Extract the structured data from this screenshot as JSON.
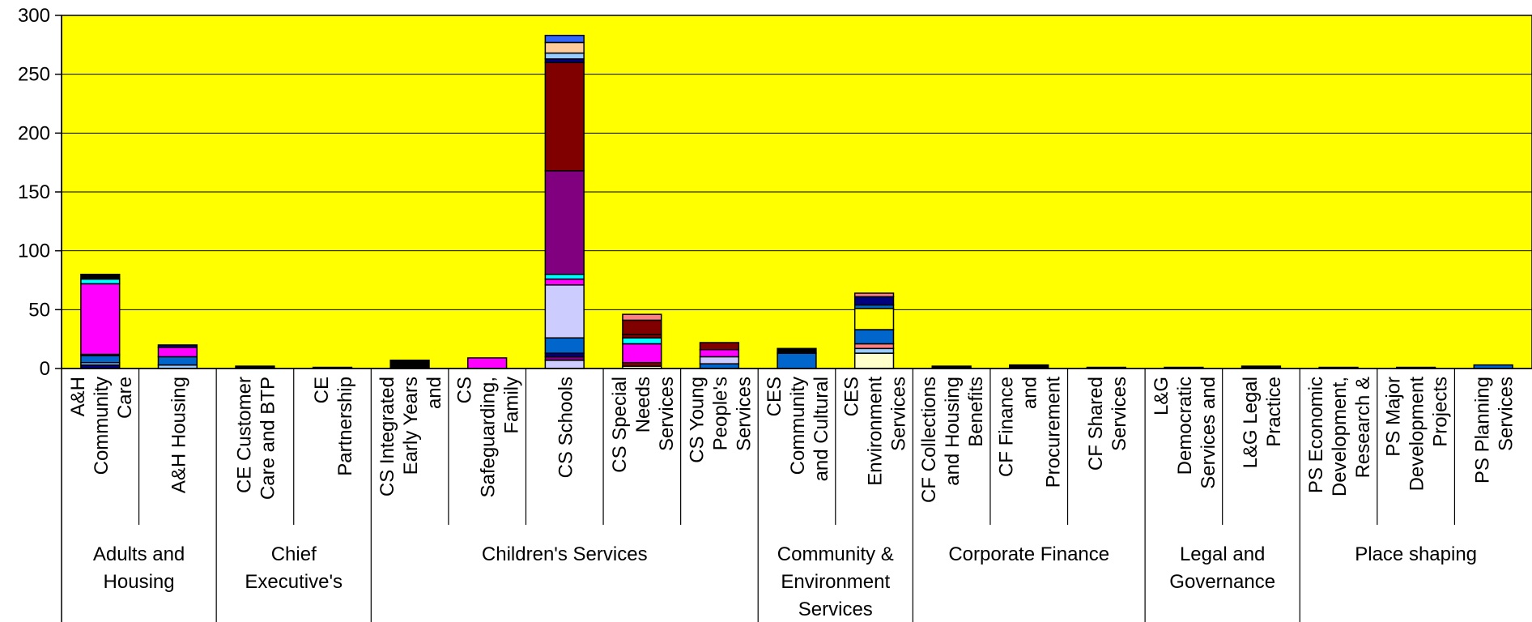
{
  "colors": {
    "plot_bg": "#ffff00",
    "gridline": "#000000",
    "bar_outline": "#000000",
    "palette": {
      "navy": "#000080",
      "blue": "#0066cc",
      "light-blue": "#99ccff",
      "lavender": "#ccccff",
      "purple": "#800080",
      "maroon": "#800000",
      "magenta": "#ff00ff",
      "cyan": "#00ffff",
      "peach": "#ffcc99",
      "pink": "#ff8080",
      "yellow": "#ffff00",
      "light-yellow": "#ffffcc",
      "royal-blue": "#3366ff",
      "black": "#000000",
      "white": "#ffffff"
    }
  },
  "chart_data": {
    "type": "bar",
    "stacked": true,
    "title": "",
    "xlabel": "",
    "ylabel": "",
    "ylim": [
      0,
      300
    ],
    "yticks": [
      0,
      50,
      100,
      150,
      200,
      250,
      300
    ],
    "grid": true,
    "legend": "none",
    "categories": [
      "A&H Community Care",
      "A&H Housing",
      "CE Customer Care and BTP",
      "CE Partnership",
      "CS Integrated Early Years and",
      "CS Safeguarding, Family",
      "CS Schools",
      "CS Special Needs Services",
      "CS Young People's Services",
      "CES Community and Cultural",
      "CES Environment Services",
      "CF Collections and Housing Benefits",
      "CF Finance and Procurement",
      "CF Shared Services",
      "L&G Democratic Services and",
      "L&G Legal Practice",
      "PS Economic Development, Research &",
      "PS Major Development Projects",
      "PS Planning Services"
    ],
    "category_lines": [
      [
        "A&H",
        "Community",
        "Care"
      ],
      [
        "A&H Housing"
      ],
      [
        "CE Customer",
        "Care and BTP"
      ],
      [
        "CE",
        "Partnership"
      ],
      [
        "CS Integrated",
        "Early Years",
        "and"
      ],
      [
        "CS",
        "Safeguarding,",
        "Family"
      ],
      [
        "CS Schools"
      ],
      [
        "CS Special",
        "Needs",
        "Services"
      ],
      [
        "CS Young",
        "People's",
        "Services"
      ],
      [
        "CES",
        "Community",
        "and Cultural"
      ],
      [
        "CES",
        "Environment",
        "Services"
      ],
      [
        "CF Collections",
        "and Housing",
        "Benefits"
      ],
      [
        "CF Finance",
        "and",
        "Procurement"
      ],
      [
        "CF Shared",
        "Services"
      ],
      [
        "L&G",
        "Democratic",
        "Services and"
      ],
      [
        "L&G Legal",
        "Practice"
      ],
      [
        "PS Economic",
        "Development,",
        "Research &"
      ],
      [
        "PS Major",
        "Development",
        "Projects"
      ],
      [
        "PS Planning",
        "Services"
      ]
    ],
    "groups": [
      {
        "label": [
          "Adults and",
          "Housing"
        ],
        "count": 2
      },
      {
        "label": [
          "Chief",
          "Executive's"
        ],
        "count": 2
      },
      {
        "label": [
          "Children's Services"
        ],
        "count": 5
      },
      {
        "label": [
          "Community &",
          "Environment",
          "Services"
        ],
        "count": 2
      },
      {
        "label": [
          "Corporate Finance"
        ],
        "count": 3
      },
      {
        "label": [
          "Legal and",
          "Governance"
        ],
        "count": 2
      },
      {
        "label": [
          "Place shaping"
        ],
        "count": 3
      }
    ],
    "stacks": [
      [
        {
          "v": 3,
          "c": "navy"
        },
        {
          "v": 2,
          "c": "light-blue"
        },
        {
          "v": 6,
          "c": "blue"
        },
        {
          "v": 1,
          "c": "lavender"
        },
        {
          "v": 60,
          "c": "magenta"
        },
        {
          "v": 4,
          "c": "cyan"
        },
        {
          "v": 4,
          "c": "black"
        }
      ],
      [
        {
          "v": 3,
          "c": "light-blue"
        },
        {
          "v": 7,
          "c": "blue"
        },
        {
          "v": 8,
          "c": "magenta"
        },
        {
          "v": 2,
          "c": "navy"
        }
      ],
      [
        {
          "v": 2,
          "c": "black"
        }
      ],
      [
        {
          "v": 1,
          "c": "black"
        }
      ],
      [
        {
          "v": 7,
          "c": "black"
        }
      ],
      [
        {
          "v": 9,
          "c": "magenta"
        }
      ],
      [
        {
          "v": 7,
          "c": "lavender"
        },
        {
          "v": 3,
          "c": "purple"
        },
        {
          "v": 3,
          "c": "navy"
        },
        {
          "v": 13,
          "c": "blue"
        },
        {
          "v": 45,
          "c": "lavender"
        },
        {
          "v": 5,
          "c": "magenta"
        },
        {
          "v": 4,
          "c": "cyan"
        },
        {
          "v": 88,
          "c": "purple"
        },
        {
          "v": 92,
          "c": "maroon"
        },
        {
          "v": 3,
          "c": "navy"
        },
        {
          "v": 5,
          "c": "light-blue"
        },
        {
          "v": 9,
          "c": "peach"
        },
        {
          "v": 6,
          "c": "royal-blue"
        }
      ],
      [
        {
          "v": 2,
          "c": "light-yellow"
        },
        {
          "v": 3,
          "c": "maroon"
        },
        {
          "v": 16,
          "c": "magenta"
        },
        {
          "v": 5,
          "c": "cyan"
        },
        {
          "v": 3,
          "c": "maroon"
        },
        {
          "v": 12,
          "c": "maroon"
        },
        {
          "v": 5,
          "c": "pink"
        }
      ],
      [
        {
          "v": 4,
          "c": "blue"
        },
        {
          "v": 6,
          "c": "lavender"
        },
        {
          "v": 6,
          "c": "magenta"
        },
        {
          "v": 6,
          "c": "maroon"
        }
      ],
      [
        {
          "v": 13,
          "c": "blue"
        },
        {
          "v": 4,
          "c": "black"
        }
      ],
      [
        {
          "v": 13,
          "c": "light-yellow"
        },
        {
          "v": 4,
          "c": "light-blue"
        },
        {
          "v": 4,
          "c": "pink"
        },
        {
          "v": 12,
          "c": "blue"
        },
        {
          "v": 18,
          "c": "yellow"
        },
        {
          "v": 3,
          "c": "blue"
        },
        {
          "v": 7,
          "c": "navy"
        },
        {
          "v": 3,
          "c": "pink"
        }
      ],
      [
        {
          "v": 2,
          "c": "black"
        }
      ],
      [
        {
          "v": 3,
          "c": "black"
        }
      ],
      [
        {
          "v": 1,
          "c": "black"
        }
      ],
      [
        {
          "v": 1,
          "c": "black"
        }
      ],
      [
        {
          "v": 2,
          "c": "black"
        }
      ],
      [
        {
          "v": 1,
          "c": "black"
        }
      ],
      [
        {
          "v": 1,
          "c": "black"
        }
      ],
      [
        {
          "v": 3,
          "c": "blue"
        }
      ]
    ]
  }
}
